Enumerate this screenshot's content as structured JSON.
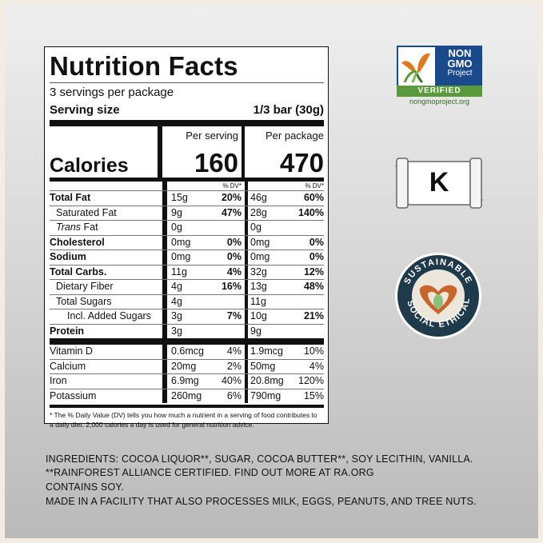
{
  "label": {
    "title": "Nutrition Facts",
    "servings": "3 servings per package",
    "serving_size_label": "Serving size",
    "serving_size_value": "1/3 bar (30g)",
    "calories_label": "Calories",
    "per_serving_label": "Per serving",
    "per_package_label": "Per package",
    "calories_serving": "160",
    "calories_package": "470",
    "dv_header": "% DV*",
    "nutrients": [
      {
        "name": "Total Fat",
        "s_amt": "15g",
        "s_dv": "20%",
        "p_amt": "46g",
        "p_dv": "60%",
        "bold": true,
        "indent": 0
      },
      {
        "name": "Saturated Fat",
        "s_amt": "9g",
        "s_dv": "47%",
        "p_amt": "28g",
        "p_dv": "140%",
        "bold": false,
        "indent": 1
      },
      {
        "name": "Trans Fat",
        "s_amt": "0g",
        "s_dv": "",
        "p_amt": "0g",
        "p_dv": "",
        "bold": false,
        "indent": 1,
        "trans": true
      },
      {
        "name": "Cholesterol",
        "s_amt": "0mg",
        "s_dv": "0%",
        "p_amt": "0mg",
        "p_dv": "0%",
        "bold": true,
        "indent": 0
      },
      {
        "name": "Sodium",
        "s_amt": "0mg",
        "s_dv": "0%",
        "p_amt": "0mg",
        "p_dv": "0%",
        "bold": true,
        "indent": 0
      },
      {
        "name": "Total Carbs.",
        "s_amt": "11g",
        "s_dv": "4%",
        "p_amt": "32g",
        "p_dv": "12%",
        "bold": true,
        "indent": 0
      },
      {
        "name": "Dietary Fiber",
        "s_amt": "4g",
        "s_dv": "16%",
        "p_amt": "13g",
        "p_dv": "48%",
        "bold": false,
        "indent": 1
      },
      {
        "name": "Total Sugars",
        "s_amt": "4g",
        "s_dv": "",
        "p_amt": "11g",
        "p_dv": "",
        "bold": false,
        "indent": 1
      },
      {
        "name": "Incl. Added Sugars",
        "s_amt": "3g",
        "s_dv": "7%",
        "p_amt": "10g",
        "p_dv": "21%",
        "bold": false,
        "indent": 3
      },
      {
        "name": "Protein",
        "s_amt": "3g",
        "s_dv": "",
        "p_amt": "9g",
        "p_dv": "",
        "bold": true,
        "indent": 0
      }
    ],
    "trans_prefix": "Trans",
    "trans_suffix": " Fat",
    "vitamins": [
      {
        "name": "Vitamin D",
        "s_amt": "0.6mcg",
        "s_dv": "4%",
        "p_amt": "1.9mcg",
        "p_dv": "10%"
      },
      {
        "name": "Calcium",
        "s_amt": "20mg",
        "s_dv": "2%",
        "p_amt": "50mg",
        "p_dv": "4%"
      },
      {
        "name": "Iron",
        "s_amt": "6.9mg",
        "s_dv": "40%",
        "p_amt": "20.8mg",
        "p_dv": "120%"
      },
      {
        "name": "Potassium",
        "s_amt": "260mg",
        "s_dv": "6%",
        "p_amt": "790mg",
        "p_dv": "15%"
      }
    ],
    "footnote": "* The % Daily Value (DV) tells you how much a nutrient in a serving of food contributes to a daily diet. 2,000 calories a day is used for general nutrition advice."
  },
  "badges": {
    "gmo_line1": "NON",
    "gmo_line2": "GMO",
    "gmo_line3": "Project",
    "gmo_verified": "VERIFIED",
    "gmo_url": "nongmoproject.org",
    "kosher_letter": "K",
    "ethical_top": "SUSTAINABLE",
    "ethical_left": "SOCIAL",
    "ethical_right": "ETHICAL"
  },
  "ingredients": {
    "line1": "INGREDIENTS: COCOA LIQUOR**, SUGAR, COCOA BUTTER**, SOY LECITHIN, VANILLA.",
    "line2": "**RAINFOREST ALLIANCE CERTIFIED. FIND OUT MORE AT RA.ORG",
    "line3": "CONTAINS SOY.",
    "line4": "MADE IN A FACILITY THAT ALSO PROCESSES MILK, EGGS, PEANUTS, AND TREE NUTS."
  },
  "colors": {
    "gmo_blue": "#1a4a8c",
    "gmo_green": "#5a9a3c",
    "ethical_navy": "#1f3a4a",
    "ethical_orange": "#c9652a"
  }
}
